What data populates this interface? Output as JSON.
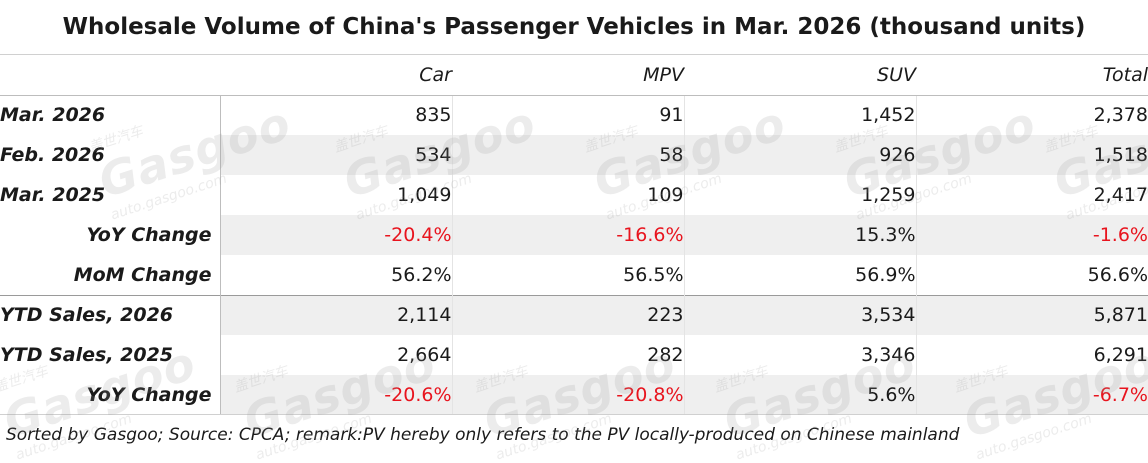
{
  "chart_data": {
    "type": "table",
    "title": "Wholesale Volume of China's Passenger Vehicles in Mar. 2026 (thousand units)",
    "columns": [
      "Car",
      "MPV",
      "SUV",
      "Total"
    ],
    "rows": [
      {
        "label": "Mar. 2026",
        "values": [
          "835",
          "91",
          "1,452",
          "2,378"
        ]
      },
      {
        "label": "Feb. 2026",
        "values": [
          "534",
          "58",
          "926",
          "1,518"
        ]
      },
      {
        "label": "Mar. 2025",
        "values": [
          "1,049",
          "109",
          "1,259",
          "2,417"
        ]
      },
      {
        "label": "YoY Change",
        "values": [
          "-20.4%",
          "-16.6%",
          "15.3%",
          "-1.6%"
        ]
      },
      {
        "label": "MoM Change",
        "values": [
          "56.2%",
          "56.5%",
          "56.9%",
          "56.6%"
        ]
      },
      {
        "label": "YTD Sales, 2026",
        "values": [
          "2,114",
          "223",
          "3,534",
          "5,871"
        ]
      },
      {
        "label": "YTD Sales, 2025",
        "values": [
          "2,664",
          "282",
          "3,346",
          "6,291"
        ]
      },
      {
        "label": "YoY Change",
        "values": [
          "-20.6%",
          "-20.8%",
          "5.6%",
          "-6.7%"
        ]
      }
    ],
    "footnote": "Sorted by Gasgoo; Source: CPCA; remark:PV hereby only refers to the PV locally-produced on Chinese mainland"
  },
  "watermark": {
    "logo": "Gasgoo",
    "cn": "盖世汽车",
    "url": "auto.gasgoo.com"
  },
  "colors": {
    "negative": "#e8141e",
    "alt_row": "#efefef",
    "text": "#1a1a1a"
  }
}
